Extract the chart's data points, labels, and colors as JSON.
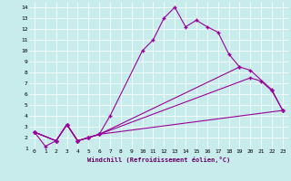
{
  "xlabel": "Windchill (Refroidissement éolien,°C)",
  "xlim": [
    -0.5,
    23.5
  ],
  "ylim": [
    1,
    14.5
  ],
  "xticks": [
    0,
    1,
    2,
    3,
    4,
    5,
    6,
    7,
    8,
    9,
    10,
    11,
    12,
    13,
    14,
    15,
    16,
    17,
    18,
    19,
    20,
    21,
    22,
    23
  ],
  "yticks": [
    1,
    2,
    3,
    4,
    5,
    6,
    7,
    8,
    9,
    10,
    11,
    12,
    13,
    14
  ],
  "bg_color": "#c8ecec",
  "grid_color": "#ffffff",
  "line_color": "#990099",
  "line1_x": [
    0,
    1,
    2,
    3,
    4,
    5,
    6,
    7,
    10,
    11,
    12,
    13,
    14,
    15,
    16,
    17,
    18,
    19
  ],
  "line1_y": [
    2.5,
    1.2,
    1.7,
    3.2,
    1.7,
    2.0,
    2.3,
    4.0,
    10.0,
    11.0,
    13.0,
    14.0,
    12.2,
    12.8,
    12.2,
    11.7,
    9.7,
    8.5
  ],
  "line2_x": [
    0,
    2,
    3,
    4,
    5,
    6,
    23
  ],
  "line2_y": [
    2.5,
    1.7,
    3.2,
    1.7,
    2.0,
    2.3,
    4.5
  ],
  "line3_x": [
    0,
    2,
    3,
    4,
    5,
    6,
    20,
    21,
    22,
    23
  ],
  "line3_y": [
    2.5,
    1.7,
    3.2,
    1.7,
    2.0,
    2.3,
    7.5,
    7.2,
    6.3,
    4.5
  ],
  "line4_x": [
    0,
    2,
    3,
    4,
    5,
    6,
    19,
    20,
    22,
    23
  ],
  "line4_y": [
    2.5,
    1.7,
    3.2,
    1.7,
    2.0,
    2.3,
    8.5,
    8.2,
    6.4,
    4.5
  ],
  "marker": "+",
  "markersize": 3,
  "linewidth": 0.8
}
